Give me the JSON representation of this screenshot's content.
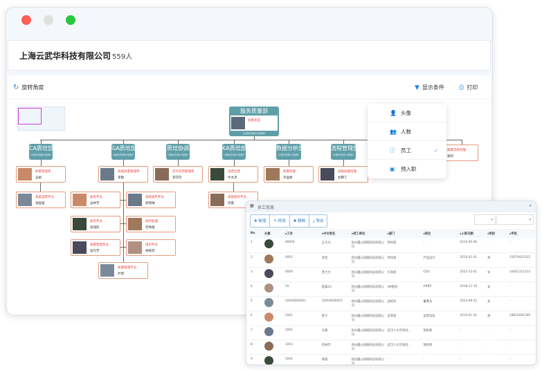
{
  "window": {
    "controls": [
      {
        "name": "close",
        "color": "#fe5f57"
      },
      {
        "name": "minimize",
        "color": "#e0e0e0"
      },
      {
        "name": "maximize",
        "color": "#28c840"
      }
    ]
  },
  "header": {
    "company": "上海云武华科技有限公司",
    "count": "559人"
  },
  "toolbar": {
    "rotate": "旋转角度",
    "filter": "显示条件",
    "print": "打印"
  },
  "colors": {
    "dept": "#5f9ea8",
    "card_border": "#e59a7c",
    "role": "#e8423f",
    "accent": "#1e88e5"
  },
  "org": {
    "root": {
      "name": "服务质量部",
      "stats": "计划6/在岗18/空缺0",
      "role": "质量总监",
      "person": "李梦飞"
    },
    "depts": [
      {
        "name": "CA质培部",
        "stats": "计划6/在岗8/空缺0"
      },
      {
        "name": "GA质培部",
        "stats": "计划6/在岗8/空缺0"
      },
      {
        "name": "质培协调",
        "stats": "计划6/在岗1/空缺0"
      },
      {
        "name": "KA质培部",
        "stats": "计划6/在岗2/空缺0"
      },
      {
        "name": "数据分析部",
        "stats": "计划6/在岗1/空缺0"
      },
      {
        "name": "流程管理部",
        "stats": "计划6/在岗1/空缺0"
      }
    ],
    "people": [
      {
        "role": "质量管理师",
        "name": "吴娟"
      },
      {
        "role": "高级质量管理师",
        "name": "李静"
      },
      {
        "role": "交付支持管理师",
        "name": "李莎莎"
      },
      {
        "role": "运营主管",
        "name": "牛太尧"
      },
      {
        "role": "质量经理",
        "name": "齐国君"
      },
      {
        "role": "高级质量经理",
        "name": "杜腾丁"
      },
      {
        "role": "质量流程经理",
        "name": "张钊"
      },
      {
        "role": "高级运营专员",
        "name": "张国强"
      },
      {
        "role": "质检专员",
        "name": "吴林芳"
      },
      {
        "role": "高级质检专员",
        "name": "郑燕琳"
      },
      {
        "role": "高级质检专员",
        "name": "何霞"
      },
      {
        "role": "质检专员",
        "name": "高瑞民"
      },
      {
        "role": "质检助理",
        "name": "范秀捷"
      },
      {
        "role": "质量管理专员",
        "name": "张元芳"
      },
      {
        "role": "培训专员",
        "name": "林晓萍"
      },
      {
        "role": "质量管理专员",
        "name": "叶明"
      }
    ]
  },
  "menu": {
    "items": [
      {
        "label": "头像",
        "icon": "user-icon"
      },
      {
        "label": "人数",
        "icon": "users-icon"
      },
      {
        "label": "员工",
        "icon": "info-icon",
        "checked": true
      },
      {
        "label": "预入职",
        "icon": "badge-icon"
      }
    ]
  },
  "panel": {
    "title": "员工信息",
    "buttons": [
      "新增",
      "修改",
      "删除",
      "导出"
    ],
    "columns": [
      "No",
      "头像",
      "工号",
      "中文姓名",
      "用工单位",
      "部门",
      "岗位",
      "入职日期",
      "性别",
      "手机"
    ],
    "rows": [
      [
        "1",
        "",
        "00004",
        "王大大",
        "杭州鑫火网络科技有限公司",
        "项目部",
        "-",
        "2016-06-06",
        "-",
        "-"
      ],
      [
        "2",
        "",
        "0001",
        "汤佳",
        "杭州鑫火网络科技有限公司",
        "项目部",
        "产品设计",
        "2016-01-01",
        "男",
        "15679425322"
      ],
      [
        "3",
        "",
        "0009",
        "曾大大",
        "杭州鑫火网络科技有限公司",
        "行政部",
        "CEO",
        "2015-12-01",
        "女",
        "16461321313"
      ],
      [
        "4",
        "",
        "10",
        "崔晨10",
        "杭州鑫火网络科技有限公司",
        "HR绩效",
        "HRBP",
        "2018-12-19",
        "女",
        "-"
      ],
      [
        "5",
        "",
        "10000000001",
        "10000000001",
        "杭州鑫火网络科技有限公司",
        "总经办",
        "董事长",
        "2014-08-22",
        "女",
        "-"
      ],
      [
        "6",
        "",
        "1001",
        "崔宁",
        "杭州鑫火网络科技有限公司",
        "运营部",
        "运营总监",
        "2019-01-01",
        "男",
        "18852082199"
      ],
      [
        "7",
        "",
        "1002",
        "冯勇",
        "杭州鑫火网络科技有限公司",
        "武汉人才市场有...",
        "架构师",
        "-",
        "-",
        "-"
      ],
      [
        "8",
        "",
        "1003",
        "何林芳",
        "杭州鑫火网络科技有限公司",
        "武汉人才市场有...",
        "架构师",
        "-",
        "-",
        "-"
      ],
      [
        "9",
        "",
        "1004",
        "胡铭",
        "杭州鑫火网络科技有限公司",
        "-",
        "-",
        "-",
        "-",
        "-"
      ]
    ]
  }
}
